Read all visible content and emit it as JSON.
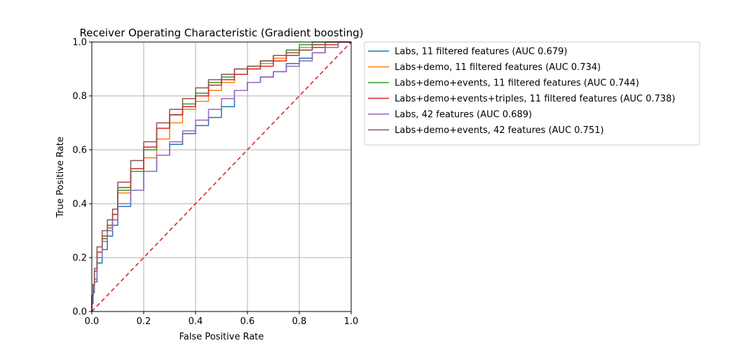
{
  "chart_data": {
    "type": "line",
    "title": "Receiver Operating Characteristic (Gradient boosting)",
    "xlabel": "False Positive Rate",
    "ylabel": "True Positive Rate",
    "xlim": [
      0,
      1
    ],
    "ylim": [
      0,
      1
    ],
    "xticks": [
      "0.0",
      "0.2",
      "0.4",
      "0.6",
      "0.8",
      "1.0"
    ],
    "yticks": [
      "0.0",
      "0.2",
      "0.4",
      "0.6",
      "0.8",
      "1.0"
    ],
    "grid": true,
    "legend_position": "outside-upper-right",
    "diagonal": {
      "x": [
        0,
        1
      ],
      "y": [
        0,
        1
      ],
      "color": "#d62728",
      "style": "dashed"
    },
    "series": [
      {
        "name": "Labs, 11 filtered features (AUC 0.679)",
        "color": "#1f77b4",
        "x": [
          0,
          0.005,
          0.01,
          0.02,
          0.04,
          0.06,
          0.08,
          0.1,
          0.15,
          0.2,
          0.25,
          0.3,
          0.35,
          0.4,
          0.45,
          0.5,
          0.55,
          0.6,
          0.65,
          0.7,
          0.75,
          0.8,
          0.85,
          0.9,
          0.95,
          1.0
        ],
        "y": [
          0,
          0.03,
          0.07,
          0.11,
          0.18,
          0.23,
          0.28,
          0.32,
          0.39,
          0.45,
          0.52,
          0.58,
          0.62,
          0.66,
          0.69,
          0.72,
          0.76,
          0.82,
          0.85,
          0.87,
          0.89,
          0.92,
          0.94,
          0.96,
          0.98,
          1.0
        ]
      },
      {
        "name": "Labs+demo, 11 filtered features (AUC 0.734)",
        "color": "#ff7f0e",
        "x": [
          0,
          0.005,
          0.01,
          0.02,
          0.04,
          0.06,
          0.08,
          0.1,
          0.15,
          0.2,
          0.25,
          0.3,
          0.35,
          0.4,
          0.45,
          0.5,
          0.55,
          0.6,
          0.65,
          0.7,
          0.75,
          0.8,
          0.85,
          0.9,
          0.95,
          1.0
        ],
        "y": [
          0,
          0.05,
          0.1,
          0.15,
          0.22,
          0.27,
          0.3,
          0.34,
          0.44,
          0.52,
          0.57,
          0.64,
          0.7,
          0.75,
          0.78,
          0.82,
          0.85,
          0.88,
          0.9,
          0.92,
          0.94,
          0.97,
          0.98,
          0.99,
          1.0,
          1.0
        ]
      },
      {
        "name": "Labs+demo+events, 11 filtered features (AUC 0.744)",
        "color": "#2ca02c",
        "x": [
          0,
          0.005,
          0.01,
          0.02,
          0.04,
          0.06,
          0.08,
          0.1,
          0.15,
          0.2,
          0.25,
          0.3,
          0.35,
          0.4,
          0.45,
          0.5,
          0.55,
          0.6,
          0.65,
          0.7,
          0.75,
          0.8,
          0.85,
          0.9,
          0.95,
          1.0
        ],
        "y": [
          0,
          0.06,
          0.1,
          0.15,
          0.22,
          0.27,
          0.31,
          0.36,
          0.45,
          0.52,
          0.6,
          0.68,
          0.73,
          0.77,
          0.81,
          0.85,
          0.87,
          0.9,
          0.91,
          0.93,
          0.95,
          0.97,
          0.99,
          1.0,
          1.0,
          1.0
        ]
      },
      {
        "name": "Labs+demo+events+triples, 11 filtered features (AUC 0.738)",
        "color": "#d62728",
        "x": [
          0,
          0.005,
          0.01,
          0.02,
          0.04,
          0.06,
          0.08,
          0.1,
          0.15,
          0.2,
          0.25,
          0.3,
          0.35,
          0.4,
          0.45,
          0.5,
          0.55,
          0.6,
          0.65,
          0.7,
          0.75,
          0.8,
          0.85,
          0.9,
          0.95,
          1.0
        ],
        "y": [
          0,
          0.05,
          0.1,
          0.15,
          0.22,
          0.28,
          0.32,
          0.36,
          0.46,
          0.53,
          0.61,
          0.68,
          0.73,
          0.76,
          0.8,
          0.84,
          0.86,
          0.88,
          0.9,
          0.91,
          0.93,
          0.95,
          0.97,
          0.98,
          0.99,
          1.0
        ]
      },
      {
        "name": "Labs, 42 features (AUC 0.689)",
        "color": "#9467bd",
        "x": [
          0,
          0.005,
          0.01,
          0.02,
          0.04,
          0.06,
          0.08,
          0.1,
          0.15,
          0.2,
          0.25,
          0.3,
          0.35,
          0.4,
          0.45,
          0.5,
          0.55,
          0.6,
          0.65,
          0.7,
          0.75,
          0.8,
          0.85,
          0.9,
          0.95,
          1.0
        ],
        "y": [
          0,
          0.04,
          0.08,
          0.12,
          0.2,
          0.26,
          0.3,
          0.34,
          0.4,
          0.45,
          0.52,
          0.58,
          0.63,
          0.67,
          0.71,
          0.75,
          0.79,
          0.82,
          0.85,
          0.87,
          0.89,
          0.91,
          0.93,
          0.96,
          0.98,
          1.0
        ]
      },
      {
        "name": "Labs+demo+events, 42 features (AUC 0.751)",
        "color": "#8c564b",
        "x": [
          0,
          0.005,
          0.01,
          0.02,
          0.04,
          0.06,
          0.08,
          0.1,
          0.15,
          0.2,
          0.25,
          0.3,
          0.35,
          0.4,
          0.45,
          0.5,
          0.55,
          0.6,
          0.65,
          0.7,
          0.75,
          0.8,
          0.85,
          0.9,
          0.95,
          1.0
        ],
        "y": [
          0,
          0.06,
          0.1,
          0.16,
          0.24,
          0.3,
          0.34,
          0.38,
          0.48,
          0.56,
          0.63,
          0.7,
          0.75,
          0.79,
          0.83,
          0.86,
          0.88,
          0.9,
          0.91,
          0.93,
          0.95,
          0.96,
          0.97,
          0.99,
          1.0,
          1.0
        ]
      }
    ]
  }
}
